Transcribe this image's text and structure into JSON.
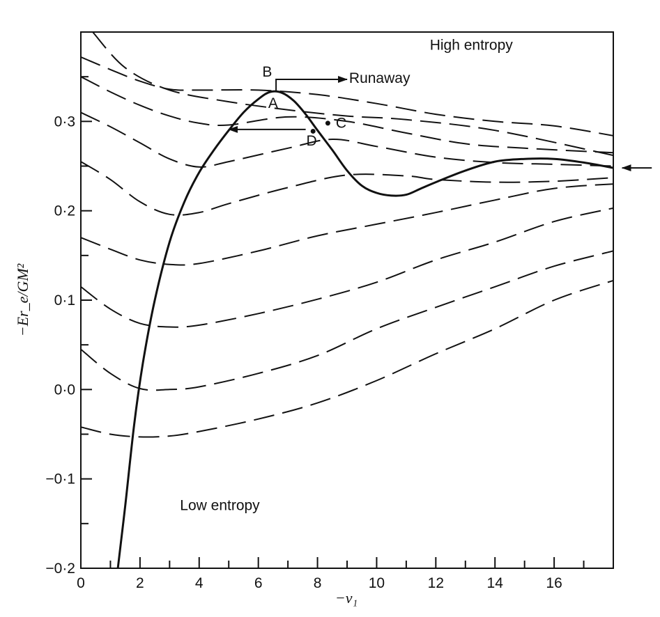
{
  "chart_data": {
    "type": "line",
    "xlabel": "−ν₁",
    "ylabel": "−Er_e/GM²",
    "xlim": [
      0,
      18
    ],
    "ylim": [
      -0.2,
      0.4
    ],
    "x_tick_labels": [
      "0",
      "2",
      "4",
      "6",
      "8",
      "10",
      "12",
      "14",
      "16"
    ],
    "x_tick_values": [
      0,
      2,
      4,
      6,
      8,
      10,
      12,
      14,
      16
    ],
    "y_tick_labels": [
      "0·3",
      "0·2",
      "0·1",
      "0·0",
      "−0·1",
      "−0·2"
    ],
    "y_tick_values": [
      0.3,
      0.2,
      0.1,
      0.0,
      -0.1,
      -0.2
    ],
    "grid": false,
    "series": [
      {
        "style": "solid",
        "points": [
          [
            1.25,
            -0.2
          ],
          [
            1.5,
            -0.13
          ],
          [
            1.8,
            -0.04
          ],
          [
            2.1,
            0.03
          ],
          [
            2.5,
            0.1
          ],
          [
            3.0,
            0.165
          ],
          [
            3.5,
            0.21
          ],
          [
            4.0,
            0.243
          ],
          [
            4.5,
            0.268
          ],
          [
            5.0,
            0.29
          ],
          [
            5.5,
            0.31
          ],
          [
            6.0,
            0.325
          ],
          [
            6.4,
            0.333
          ],
          [
            6.8,
            0.332
          ],
          [
            7.2,
            0.323
          ],
          [
            7.6,
            0.308
          ],
          [
            8.0,
            0.29
          ],
          [
            8.5,
            0.268
          ],
          [
            9.0,
            0.245
          ],
          [
            9.5,
            0.228
          ],
          [
            10.0,
            0.22
          ],
          [
            10.5,
            0.217
          ],
          [
            11.0,
            0.218
          ],
          [
            11.5,
            0.225
          ],
          [
            12.0,
            0.232
          ],
          [
            13.0,
            0.245
          ],
          [
            14.0,
            0.255
          ],
          [
            15.0,
            0.258
          ],
          [
            16.0,
            0.258
          ],
          [
            17.0,
            0.254
          ],
          [
            18.0,
            0.248
          ]
        ]
      },
      {
        "style": "dashed",
        "points": [
          [
            0.4,
            0.4
          ],
          [
            1.5,
            0.36
          ],
          [
            3,
            0.335
          ],
          [
            5,
            0.322
          ],
          [
            7,
            0.313
          ],
          [
            9,
            0.306
          ],
          [
            11,
            0.302
          ],
          [
            14,
            0.29
          ],
          [
            18,
            0.262
          ]
        ]
      },
      {
        "style": "dashed",
        "points": [
          [
            0,
            0.372
          ],
          [
            1,
            0.358
          ],
          [
            2,
            0.345
          ],
          [
            3,
            0.336
          ],
          [
            4,
            0.335
          ],
          [
            6,
            0.335
          ],
          [
            8,
            0.33
          ],
          [
            10,
            0.32
          ],
          [
            12,
            0.308
          ],
          [
            14,
            0.3
          ],
          [
            16,
            0.295
          ],
          [
            18,
            0.284
          ]
        ]
      },
      {
        "style": "dashed",
        "points": [
          [
            0,
            0.35
          ],
          [
            1,
            0.333
          ],
          [
            2,
            0.318
          ],
          [
            3,
            0.306
          ],
          [
            4,
            0.298
          ],
          [
            5,
            0.296
          ],
          [
            7,
            0.305
          ],
          [
            9,
            0.3
          ],
          [
            11,
            0.287
          ],
          [
            13,
            0.275
          ],
          [
            15,
            0.27
          ],
          [
            18,
            0.265
          ]
        ]
      },
      {
        "style": "dashed",
        "points": [
          [
            0,
            0.31
          ],
          [
            1,
            0.294
          ],
          [
            2,
            0.276
          ],
          [
            3,
            0.258
          ],
          [
            4,
            0.249
          ],
          [
            5,
            0.255
          ],
          [
            7,
            0.27
          ],
          [
            8.5,
            0.28
          ],
          [
            10,
            0.272
          ],
          [
            12,
            0.26
          ],
          [
            14,
            0.254
          ],
          [
            16,
            0.252
          ],
          [
            18,
            0.25
          ]
        ]
      },
      {
        "style": "dashed",
        "points": [
          [
            0,
            0.255
          ],
          [
            1,
            0.235
          ],
          [
            2,
            0.21
          ],
          [
            3,
            0.196
          ],
          [
            4,
            0.198
          ],
          [
            5,
            0.208
          ],
          [
            7,
            0.226
          ],
          [
            9,
            0.24
          ],
          [
            11,
            0.239
          ],
          [
            12,
            0.235
          ],
          [
            14,
            0.232
          ],
          [
            16,
            0.233
          ],
          [
            18,
            0.237
          ]
        ]
      },
      {
        "style": "dashed",
        "points": [
          [
            0,
            0.17
          ],
          [
            1,
            0.157
          ],
          [
            2,
            0.145
          ],
          [
            3,
            0.14
          ],
          [
            4,
            0.141
          ],
          [
            6,
            0.155
          ],
          [
            8,
            0.172
          ],
          [
            10,
            0.185
          ],
          [
            12,
            0.198
          ],
          [
            14,
            0.212
          ],
          [
            16,
            0.225
          ],
          [
            18,
            0.23
          ]
        ]
      },
      {
        "style": "dashed",
        "points": [
          [
            0,
            0.115
          ],
          [
            1,
            0.09
          ],
          [
            2,
            0.074
          ],
          [
            3,
            0.07
          ],
          [
            4,
            0.072
          ],
          [
            6,
            0.085
          ],
          [
            8,
            0.101
          ],
          [
            10,
            0.12
          ],
          [
            12,
            0.145
          ],
          [
            14,
            0.165
          ],
          [
            16,
            0.188
          ],
          [
            18,
            0.203
          ]
        ]
      },
      {
        "style": "dashed",
        "points": [
          [
            0,
            0.045
          ],
          [
            1,
            0.018
          ],
          [
            2,
            0.001
          ],
          [
            3,
            0.0
          ],
          [
            4,
            0.003
          ],
          [
            6,
            0.018
          ],
          [
            8,
            0.038
          ],
          [
            10,
            0.068
          ],
          [
            12,
            0.092
          ],
          [
            14,
            0.115
          ],
          [
            16,
            0.138
          ],
          [
            18,
            0.155
          ]
        ]
      },
      {
        "style": "dashed",
        "points": [
          [
            0,
            -0.042
          ],
          [
            1,
            -0.05
          ],
          [
            2,
            -0.053
          ],
          [
            3,
            -0.052
          ],
          [
            4,
            -0.047
          ],
          [
            6,
            -0.033
          ],
          [
            8,
            -0.015
          ],
          [
            10,
            0.01
          ],
          [
            12,
            0.04
          ],
          [
            14,
            0.068
          ],
          [
            16,
            0.1
          ],
          [
            18,
            0.122
          ]
        ]
      }
    ],
    "annotations": [
      {
        "text": "High entropy",
        "x": 13.2,
        "y": 0.38
      },
      {
        "text": "Low entropy",
        "x": 4.7,
        "y": -0.135
      },
      {
        "text": "Runaway",
        "x": 10.1,
        "y": 0.343
      },
      {
        "text": "A",
        "x": 6.5,
        "y": 0.315
      },
      {
        "text": "B",
        "x": 6.3,
        "y": 0.35
      },
      {
        "text": "C",
        "x": 8.8,
        "y": 0.293
      },
      {
        "text": "D",
        "x": 7.8,
        "y": 0.273
      }
    ],
    "points": [
      {
        "name": "C",
        "x": 8.35,
        "y": 0.298
      },
      {
        "name": "D",
        "x": 7.85,
        "y": 0.289
      }
    ],
    "arrows": [
      {
        "name": "runaway",
        "path": [
          [
            6.6,
            0.333
          ],
          [
            6.6,
            0.347
          ],
          [
            9.0,
            0.347
          ]
        ]
      },
      {
        "name": "D-to-left",
        "path": [
          [
            7.6,
            0.291
          ],
          [
            5.0,
            0.291
          ]
        ]
      },
      {
        "name": "right-edge",
        "path": [
          [
            19.3,
            0.248
          ],
          [
            18.3,
            0.248
          ]
        ]
      }
    ]
  }
}
